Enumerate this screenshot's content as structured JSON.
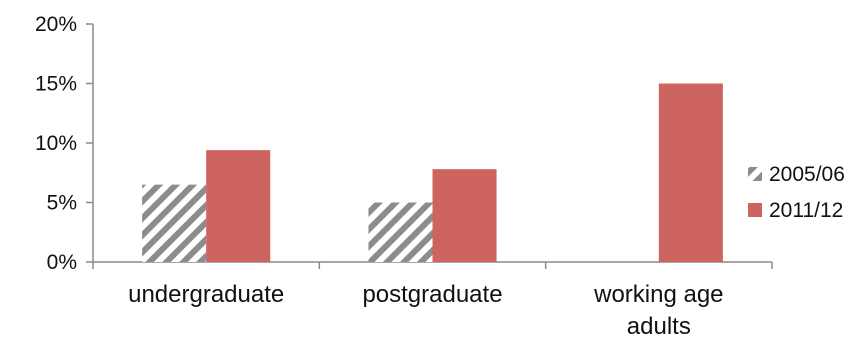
{
  "chart_data": {
    "type": "bar",
    "categories": [
      [
        "undergraduate"
      ],
      [
        "postgraduate"
      ],
      [
        "working age",
        "adults"
      ]
    ],
    "series": [
      {
        "name": "2005/06",
        "values": [
          6.5,
          5.0,
          null
        ],
        "fill": "hatched",
        "color": "#8c8c8c"
      },
      {
        "name": "2011/12",
        "values": [
          9.4,
          7.8,
          15.0
        ],
        "fill": "solid",
        "color": "#cd6460"
      }
    ],
    "ylim": [
      0,
      20
    ],
    "yticks": [
      0,
      5,
      10,
      15,
      20
    ],
    "ytick_labels": [
      "0%",
      "5%",
      "10%",
      "15%",
      "20%"
    ],
    "grid": false,
    "legend_position": "right"
  }
}
